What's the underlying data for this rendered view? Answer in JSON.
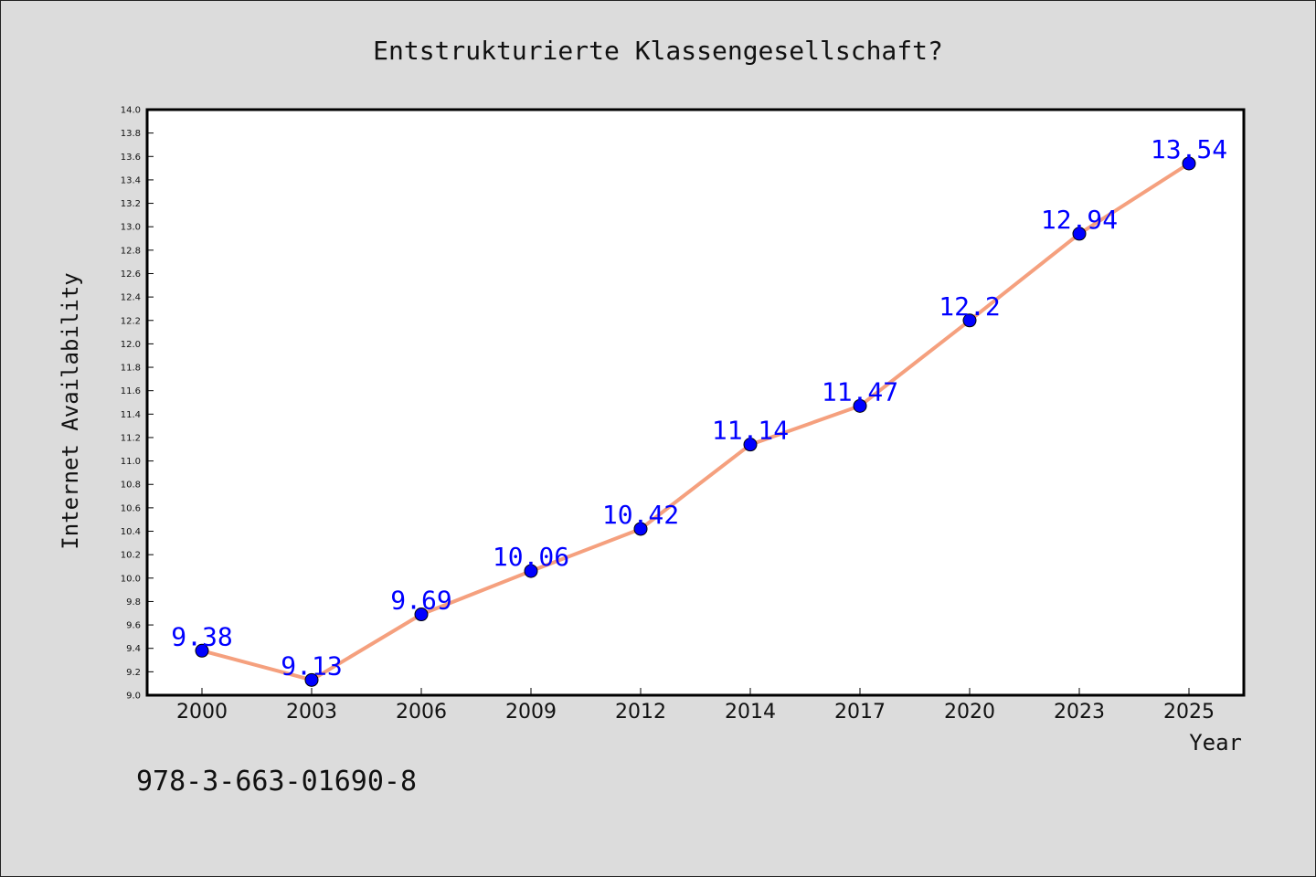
{
  "chart_data": {
    "type": "line",
    "title": "Entstrukturierte Klassengesellschaft?",
    "xlabel": "Year",
    "ylabel": "Internet Availability",
    "categories": [
      "2000",
      "2003",
      "2006",
      "2009",
      "2012",
      "2014",
      "2017",
      "2020",
      "2023",
      "2025"
    ],
    "series": [
      {
        "values": [
          9.38,
          9.13,
          9.69,
          10.06,
          10.42,
          11.14,
          11.47,
          12.2,
          12.94,
          13.54
        ],
        "data_labels": [
          "9.38",
          "9.13",
          "9.69",
          "10.06",
          "10.42",
          "11.14",
          "11.47",
          "12.2",
          "12.94",
          "13.54"
        ]
      }
    ],
    "ylim": [
      9.0,
      14.0
    ],
    "ytick_step": 0.2,
    "grid": false,
    "legend": "none"
  },
  "footer_text": "978-3-663-01690-8",
  "colors": {
    "background": "#dcdcdc",
    "plot_area": "#ffffff",
    "line": "#f5a07e",
    "marker": "#0000ff",
    "data_label": "#0000ff",
    "text": "#111111"
  }
}
